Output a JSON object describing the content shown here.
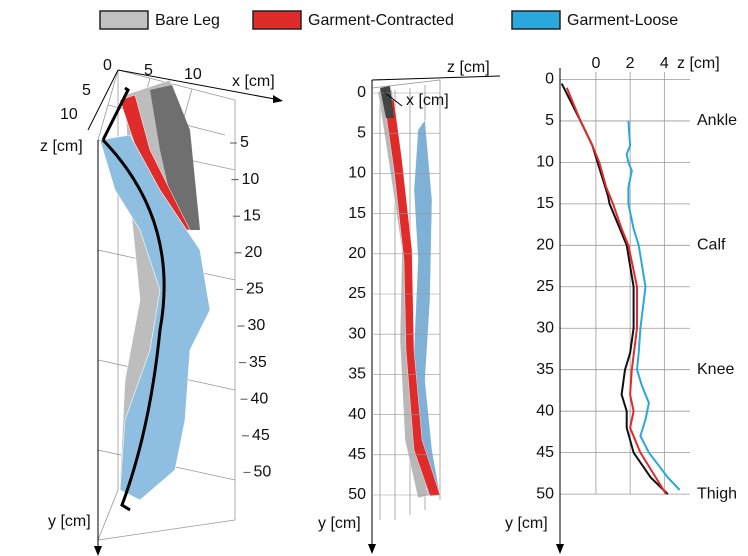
{
  "legend": [
    {
      "name": "Bare Leg",
      "color": "#c0c0c0"
    },
    {
      "name": "Garment-Contracted",
      "color": "#e02b2b"
    },
    {
      "name": "Garment-Loose",
      "color": "#2aa8dc"
    }
  ],
  "left_panel": {
    "x_label": "x [cm]",
    "x_ticks": [
      0,
      5,
      10
    ],
    "z_label": "z [cm]",
    "z_ticks": [
      5,
      10
    ],
    "y_label": "y [cm]",
    "y_ticks": [
      5,
      10,
      15,
      20,
      25,
      30,
      35,
      40,
      45,
      50
    ]
  },
  "middle_panel": {
    "z_label": "z [cm]",
    "x_label": "x [cm]",
    "y_label": "y [cm]",
    "y_ticks": [
      0,
      5,
      10,
      15,
      20,
      25,
      30,
      35,
      40,
      45,
      50
    ]
  },
  "chart_data": {
    "type": "line",
    "x_label": "z [cm]",
    "y_label": "y [cm]",
    "xlim": [
      -2.1,
      5.5
    ],
    "xticks": [
      0,
      2,
      4
    ],
    "ylim": [
      -0.9,
      56.5
    ],
    "yticks": [
      0,
      5,
      10,
      15,
      20,
      25,
      30,
      35,
      40,
      45,
      50
    ],
    "y_reversed": true,
    "grid": true,
    "annotations": [
      {
        "text": "Ankle",
        "y": 5
      },
      {
        "text": "Calf",
        "y": 20
      },
      {
        "text": "Knee",
        "y": 35
      },
      {
        "text": "Thigh",
        "y": 50
      }
    ],
    "series": [
      {
        "name": "Bare Leg",
        "color": "#111111",
        "y": [
          0.5,
          5,
          8,
          10,
          14,
          15,
          18,
          20,
          25,
          30,
          33,
          35,
          38,
          40,
          42,
          45,
          48,
          50
        ],
        "values": [
          -2.0,
          -0.9,
          -0.2,
          0.1,
          0.7,
          0.8,
          1.4,
          1.8,
          2.2,
          2.2,
          2.0,
          1.7,
          1.5,
          1.8,
          1.8,
          2.2,
          3.2,
          4.2
        ]
      },
      {
        "name": "Garment-Contracted",
        "color": "#e02b2b",
        "y": [
          1,
          5,
          8,
          10,
          13,
          15,
          18,
          20,
          25,
          30,
          35,
          38,
          40,
          42,
          45,
          48,
          50
        ],
        "values": [
          -1.7,
          -0.9,
          -0.2,
          0.2,
          0.6,
          1.0,
          1.5,
          1.9,
          2.4,
          2.4,
          2.1,
          2.0,
          2.2,
          2.0,
          2.6,
          3.5,
          4.1
        ]
      },
      {
        "name": "Garment-Loose",
        "color": "#2aa8dc",
        "y": [
          5,
          8,
          9,
          10,
          11,
          13,
          15,
          18,
          20,
          25,
          30,
          33,
          35,
          37,
          39,
          41,
          43,
          45,
          48,
          49.5
        ],
        "values": [
          1.9,
          2.0,
          1.8,
          1.9,
          2.1,
          1.9,
          1.9,
          2.2,
          2.5,
          2.9,
          2.6,
          2.5,
          2.4,
          2.7,
          3.1,
          2.9,
          2.6,
          3.1,
          4.2,
          4.9
        ]
      }
    ]
  }
}
